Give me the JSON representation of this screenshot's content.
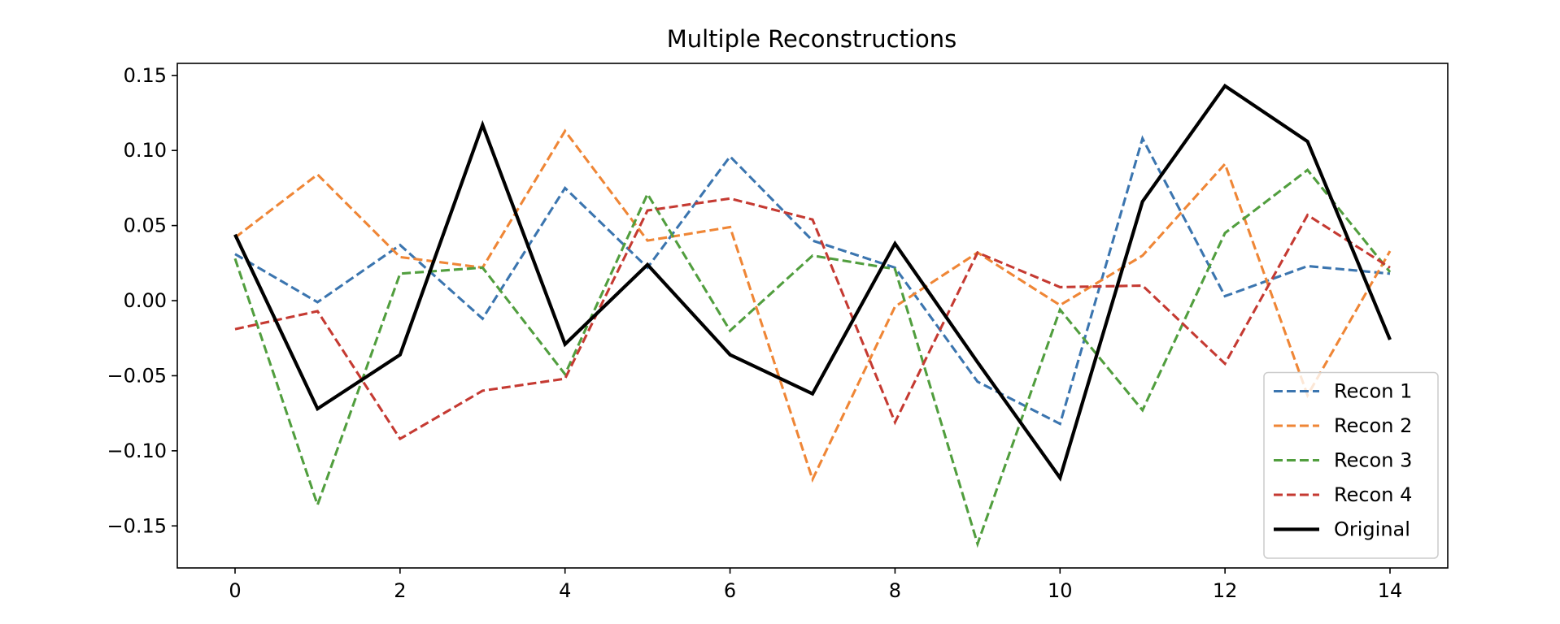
{
  "chart_data": {
    "type": "line",
    "title": "Multiple Reconstructions",
    "xlabel": "",
    "ylabel": "",
    "xlim": [
      -0.7,
      14.7
    ],
    "ylim": [
      -0.178,
      0.158
    ],
    "x": [
      0,
      1,
      2,
      3,
      4,
      5,
      6,
      7,
      8,
      9,
      10,
      11,
      12,
      13,
      14
    ],
    "x_ticks": [
      0,
      2,
      4,
      6,
      8,
      10,
      12,
      14
    ],
    "x_tick_labels": [
      "0",
      "2",
      "4",
      "6",
      "8",
      "10",
      "12",
      "14"
    ],
    "y_ticks": [
      0.15,
      0.1,
      0.05,
      0.0,
      -0.05,
      -0.1,
      -0.15
    ],
    "y_tick_labels": [
      "0.15",
      "0.10",
      "0.05",
      "0.00",
      "−0.05",
      "−0.10",
      "−0.15"
    ],
    "grid": false,
    "legend_position": "lower-right",
    "series": [
      {
        "name": "Recon 1",
        "style": "dashed",
        "color": "#3b75af",
        "values": [
          0.031,
          -0.001,
          0.037,
          -0.012,
          0.075,
          0.022,
          0.096,
          0.04,
          0.022,
          -0.054,
          -0.082,
          0.108,
          0.003,
          0.023,
          0.018
        ]
      },
      {
        "name": "Recon 2",
        "style": "dashed",
        "color": "#ef8636",
        "values": [
          0.042,
          0.084,
          0.029,
          0.022,
          0.113,
          0.04,
          0.049,
          -0.119,
          -0.004,
          0.032,
          -0.003,
          0.03,
          0.091,
          -0.063,
          0.033
        ]
      },
      {
        "name": "Recon 3",
        "style": "dashed",
        "color": "#519e3e",
        "values": [
          0.028,
          -0.136,
          0.018,
          0.022,
          -0.049,
          0.071,
          -0.02,
          0.03,
          0.021,
          -0.162,
          -0.006,
          -0.073,
          0.045,
          0.087,
          0.019
        ]
      },
      {
        "name": "Recon 4",
        "style": "dashed",
        "color": "#c53a32",
        "values": [
          -0.019,
          -0.007,
          -0.092,
          -0.06,
          -0.052,
          0.06,
          0.068,
          0.054,
          -0.081,
          0.032,
          0.009,
          0.01,
          -0.042,
          0.057,
          0.022
        ]
      },
      {
        "name": "Original",
        "style": "solid",
        "color": "#000000",
        "values": [
          0.044,
          -0.072,
          -0.036,
          0.117,
          -0.029,
          0.024,
          -0.036,
          -0.062,
          0.038,
          -0.041,
          -0.118,
          0.066,
          0.143,
          0.106,
          -0.026
        ]
      }
    ]
  }
}
